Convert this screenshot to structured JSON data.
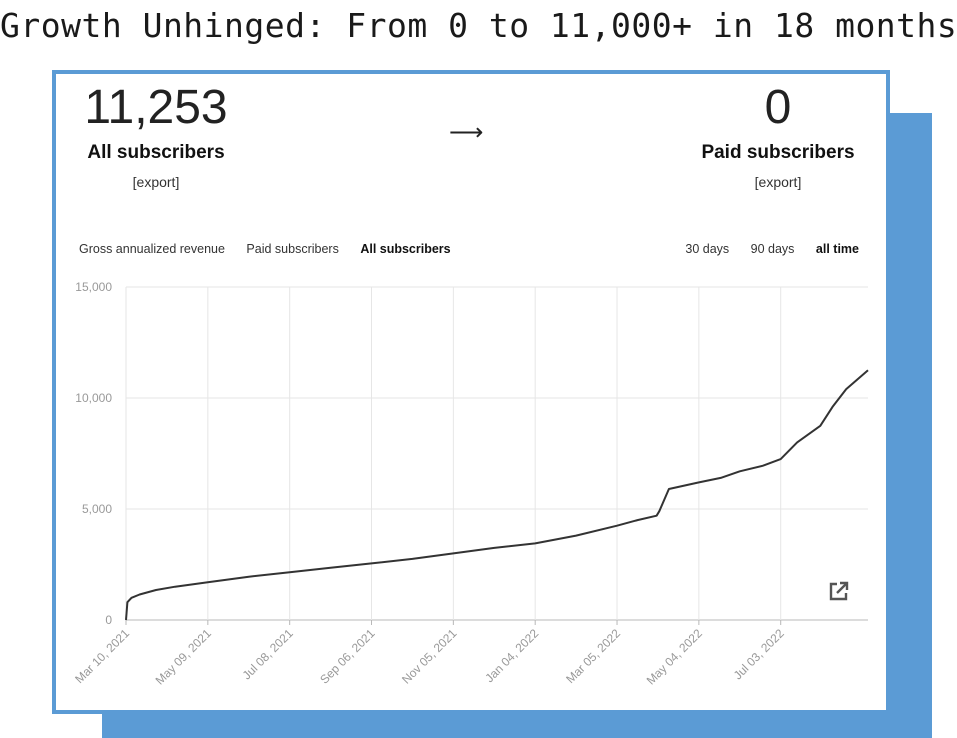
{
  "headline": "Growth Unhinged: From 0 to 11,000+ in 18 months",
  "stats": {
    "all": {
      "value": "11,253",
      "label": "All subscribers",
      "export": "[export]"
    },
    "arrow": "⟶",
    "paid": {
      "value": "0",
      "label": "Paid subscribers",
      "export": "[export]"
    }
  },
  "metric_tabs": [
    {
      "label": "Gross annualized revenue",
      "active": false
    },
    {
      "label": "Paid subscribers",
      "active": false
    },
    {
      "label": "All subscribers",
      "active": true
    }
  ],
  "range_tabs": [
    {
      "label": "30 days",
      "active": false
    },
    {
      "label": "90 days",
      "active": false
    },
    {
      "label": "all time",
      "active": true
    }
  ],
  "icons": {
    "external": "external-link-icon"
  },
  "colors": {
    "accent": "#5b9bd5",
    "line": "#333333",
    "grid": "#e6e6e6",
    "tick": "#b8b8b8"
  },
  "chart_data": {
    "type": "line",
    "title": "",
    "xlabel": "",
    "ylabel": "",
    "ylim": [
      0,
      15000
    ],
    "yticks": [
      0,
      5000,
      10000,
      15000
    ],
    "ytick_labels": [
      "0",
      "5,000",
      "10,000",
      "15,000"
    ],
    "xlim": [
      "2021-03-10",
      "2022-09-05"
    ],
    "xticks": [
      "2021-03-10",
      "2021-05-09",
      "2021-07-08",
      "2021-09-06",
      "2021-11-05",
      "2022-01-04",
      "2022-03-05",
      "2022-05-04",
      "2022-07-03"
    ],
    "xtick_labels": [
      "Mar 10, 2021",
      "May 09, 2021",
      "Jul 08, 2021",
      "Sep 06, 2021",
      "Nov 05, 2021",
      "Jan 04, 2022",
      "Mar 05, 2022",
      "May 04, 2022",
      "Jul 03, 2022"
    ],
    "grid": true,
    "legend": "none",
    "series": [
      {
        "x": [
          "2021-03-10",
          "2021-03-11",
          "2021-03-14",
          "2021-03-20",
          "2021-04-01",
          "2021-04-15",
          "2021-05-09",
          "2021-06-08",
          "2021-07-08",
          "2021-08-07",
          "2021-09-06",
          "2021-10-06",
          "2021-11-05",
          "2021-12-05",
          "2022-01-04",
          "2022-02-03",
          "2022-03-05",
          "2022-03-20",
          "2022-04-03",
          "2022-04-05",
          "2022-04-12",
          "2022-05-04",
          "2022-05-20",
          "2022-06-03",
          "2022-06-20",
          "2022-07-03",
          "2022-07-15",
          "2022-08-01",
          "2022-08-10",
          "2022-08-20",
          "2022-09-05"
        ],
        "y": [
          0,
          800,
          1000,
          1150,
          1350,
          1500,
          1700,
          1950,
          2150,
          2350,
          2550,
          2750,
          3000,
          3250,
          3450,
          3800,
          4250,
          4500,
          4700,
          4900,
          5900,
          6200,
          6400,
          6700,
          6950,
          7250,
          8000,
          8750,
          9600,
          10400,
          11250
        ]
      }
    ]
  }
}
